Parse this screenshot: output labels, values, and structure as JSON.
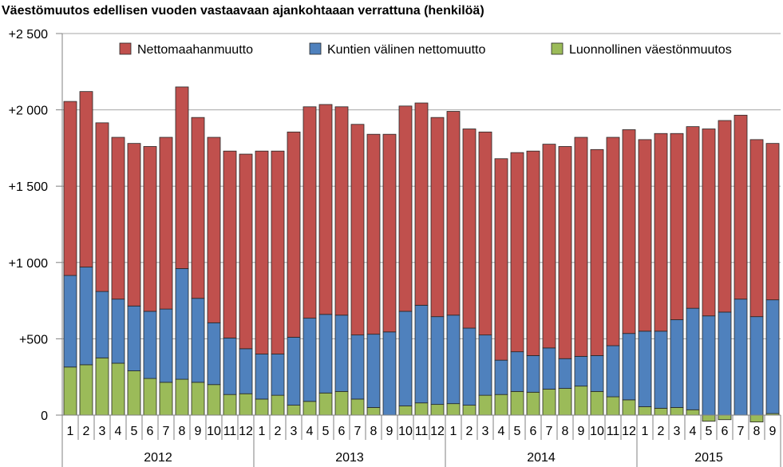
{
  "chart_data": {
    "type": "bar",
    "stacked": true,
    "title": "Väestömuutos edellisen vuoden vastaavaan ajankohtaaan verrattuna (henkilöä)",
    "xlabel": "",
    "ylabel": "",
    "ylim": [
      0,
      2500
    ],
    "yticks": [
      {
        "value": 0,
        "label": "0"
      },
      {
        "value": 500,
        "label": "+500"
      },
      {
        "value": 1000,
        "label": "+1 000"
      },
      {
        "value": 1500,
        "label": "+1 500"
      },
      {
        "value": 2000,
        "label": "+2 000"
      },
      {
        "value": 2500,
        "label": "+2 500"
      }
    ],
    "grid": true,
    "legend_position": "top-right",
    "categories": [
      "1",
      "2",
      "3",
      "4",
      "5",
      "6",
      "7",
      "8",
      "9",
      "10",
      "11",
      "12",
      "1",
      "2",
      "3",
      "4",
      "5",
      "6",
      "7",
      "8",
      "9",
      "10",
      "11",
      "12",
      "1",
      "2",
      "3",
      "4",
      "5",
      "6",
      "7",
      "8",
      "9",
      "10",
      "11",
      "12",
      "1",
      "2",
      "3",
      "4",
      "5",
      "6",
      "7",
      "8",
      "9"
    ],
    "groups": [
      {
        "label": "2012",
        "count": 12
      },
      {
        "label": "2013",
        "count": 12
      },
      {
        "label": "2014",
        "count": 12
      },
      {
        "label": "2015",
        "count": 9
      }
    ],
    "series": [
      {
        "name": "Luonnollinen väestönmuutos",
        "color": "#9bbb59",
        "values": [
          315,
          330,
          375,
          340,
          290,
          240,
          215,
          235,
          215,
          200,
          135,
          140,
          105,
          130,
          65,
          90,
          145,
          155,
          105,
          50,
          0,
          60,
          80,
          70,
          75,
          65,
          130,
          135,
          155,
          150,
          170,
          175,
          190,
          155,
          120,
          100,
          55,
          45,
          50,
          35,
          -40,
          -30,
          0,
          -45,
          10
        ]
      },
      {
        "name": "Kuntien välinen nettomuutto",
        "color": "#4f81bd",
        "values": [
          600,
          640,
          435,
          420,
          425,
          440,
          480,
          725,
          550,
          405,
          370,
          295,
          295,
          270,
          445,
          545,
          515,
          500,
          420,
          480,
          545,
          620,
          640,
          575,
          580,
          505,
          395,
          225,
          260,
          240,
          270,
          195,
          195,
          235,
          335,
          435,
          495,
          505,
          575,
          665,
          650,
          675,
          760,
          645,
          745
        ]
      },
      {
        "name": "Nettomaahanmuutto",
        "color": "#c0504d",
        "values": [
          1140,
          1150,
          1105,
          1060,
          1065,
          1080,
          1125,
          1190,
          1185,
          1215,
          1225,
          1275,
          1330,
          1330,
          1345,
          1385,
          1375,
          1365,
          1380,
          1310,
          1295,
          1345,
          1325,
          1305,
          1335,
          1305,
          1330,
          1320,
          1305,
          1340,
          1335,
          1390,
          1435,
          1350,
          1365,
          1335,
          1255,
          1295,
          1220,
          1190,
          1225,
          1255,
          1205,
          1160,
          1025
        ]
      }
    ]
  }
}
